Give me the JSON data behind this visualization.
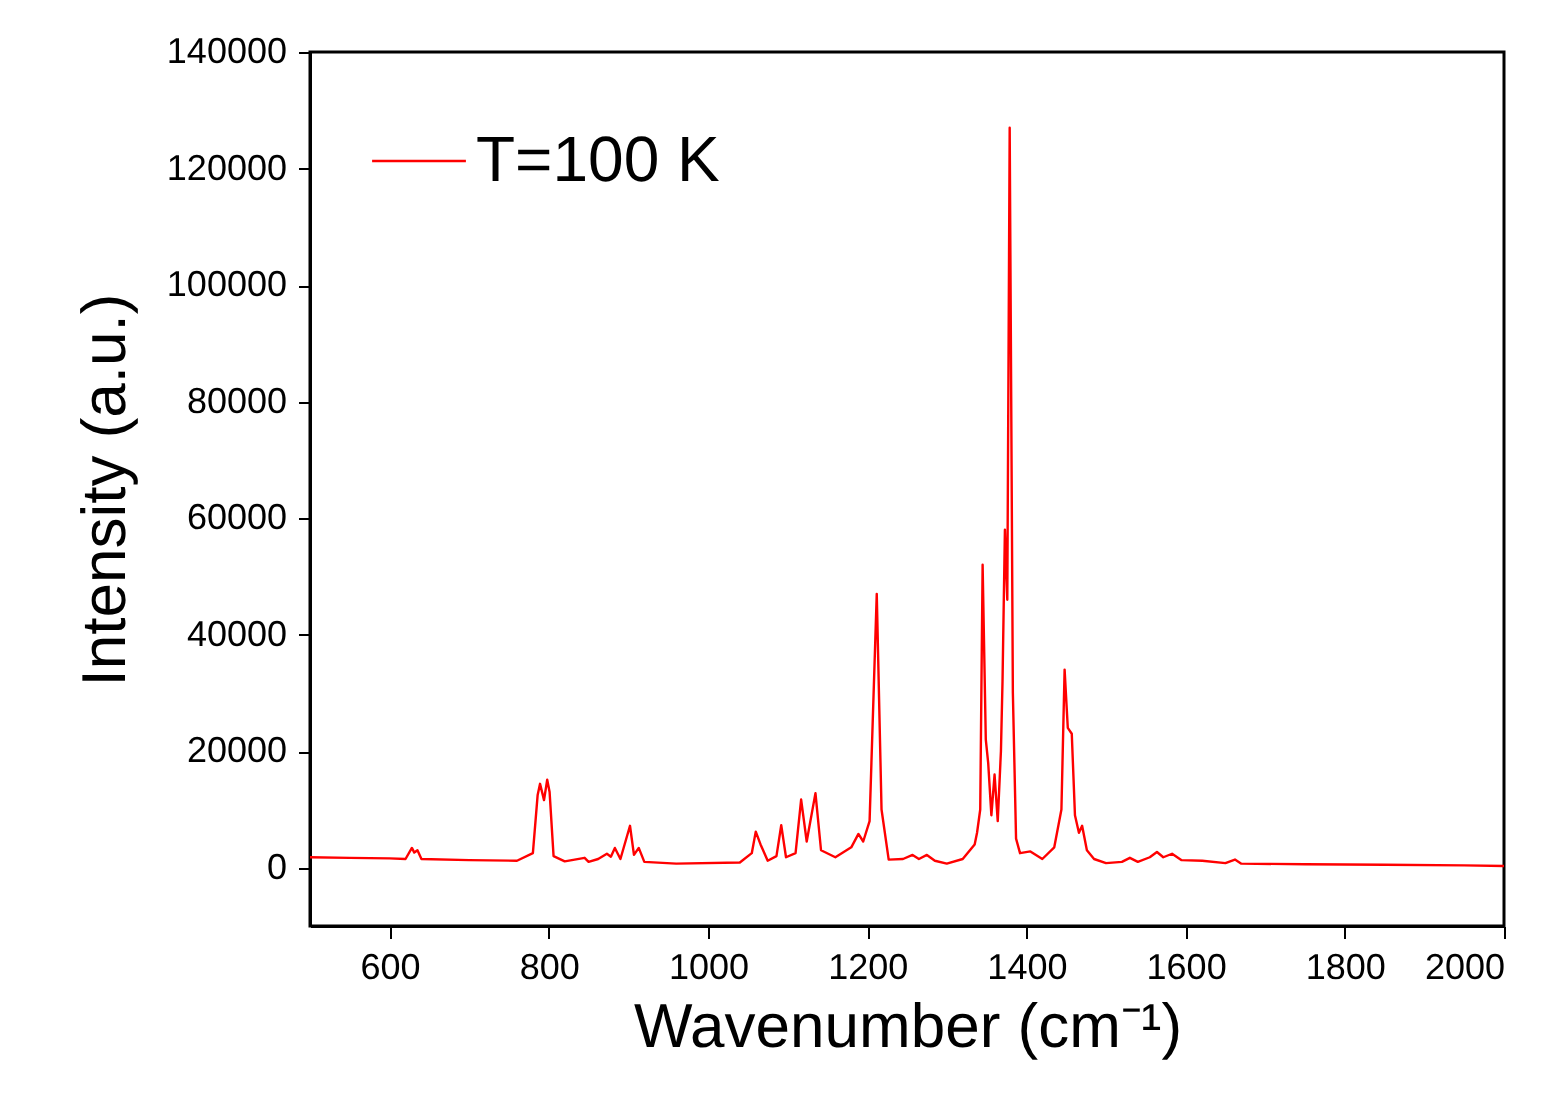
{
  "chart_data": {
    "type": "line",
    "xlabel": "Wavenumber (cm⁻¹)",
    "ylabel": "Intensity (a.u.)",
    "legend": "top left",
    "x": [
      500,
      550,
      600,
      620,
      628,
      631,
      635,
      640,
      700,
      760,
      780,
      786,
      789,
      794,
      798,
      801,
      806,
      820,
      845,
      850,
      862,
      873,
      878,
      883,
      890,
      902,
      907,
      913,
      920,
      960,
      1040,
      1055,
      1060,
      1066,
      1075,
      1086,
      1092,
      1098,
      1110,
      1117,
      1124,
      1135,
      1142,
      1160,
      1180,
      1189,
      1195,
      1203,
      1212,
      1218,
      1227,
      1245,
      1257,
      1265,
      1275,
      1285,
      1300,
      1320,
      1335,
      1338,
      1342,
      1345,
      1349,
      1352,
      1356,
      1360,
      1364,
      1368,
      1370,
      1373,
      1376,
      1379,
      1383,
      1387,
      1392,
      1405,
      1420,
      1435,
      1444,
      1448,
      1452,
      1457,
      1461,
      1466,
      1470,
      1476,
      1485,
      1500,
      1520,
      1530,
      1540,
      1555,
      1564,
      1572,
      1583,
      1595,
      1621,
      1650,
      1662,
      1670,
      1750,
      1850,
      1950,
      2000
    ],
    "series": [
      {
        "name": "T=100 K",
        "color": "#ff0000",
        "values": [
          1800,
          1700,
          1600,
          1500,
          3400,
          2600,
          3000,
          1500,
          1300,
          1200,
          2500,
          12500,
          14400,
          11600,
          15100,
          13000,
          2000,
          1100,
          1700,
          1000,
          1500,
          2400,
          1900,
          3400,
          1500,
          7200,
          2200,
          3400,
          1000,
          700,
          900,
          2500,
          6200,
          4000,
          1200,
          2000,
          7300,
          1800,
          2500,
          11700,
          4500,
          12800,
          3000,
          1800,
          3500,
          5800,
          4500,
          8000,
          47000,
          10000,
          1400,
          1500,
          2200,
          1500,
          2200,
          1200,
          700,
          1500,
          4000,
          6000,
          10000,
          52000,
          22000,
          18000,
          9000,
          16000,
          8000,
          20000,
          32000,
          58000,
          46000,
          127000,
          30000,
          5000,
          2500,
          2800,
          1500,
          3500,
          10000,
          34000,
          24000,
          23000,
          9000,
          6000,
          7200,
          3000,
          1500,
          800,
          1000,
          1700,
          1000,
          1800,
          2700,
          1800,
          2400,
          1300,
          1200,
          800,
          1400,
          700,
          600,
          500,
          400,
          300
        ]
      }
    ],
    "xlim": [
      500,
      2000
    ],
    "ylim": [
      -10000,
      140000
    ],
    "xticks": [
      600,
      800,
      1000,
      1200,
      1400,
      1600,
      1800,
      2000
    ],
    "yticks": [
      0,
      20000,
      40000,
      60000,
      80000,
      100000,
      120000,
      140000
    ]
  }
}
